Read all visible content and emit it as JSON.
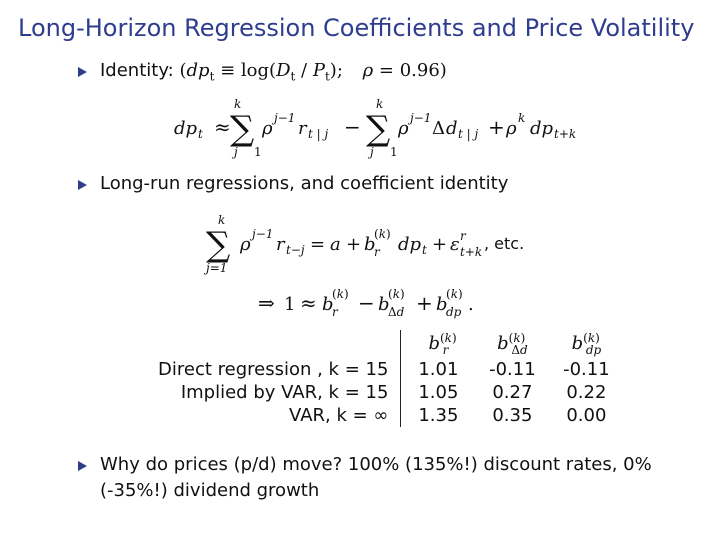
{
  "title": "Long-Horizon Regression Coefficients and Price Volatility",
  "bullets": {
    "b1": "Identity:",
    "b2": "Long-run regressions, and coefficient identity",
    "b3_line1": "Why do prices (p/d) move? 100% (135%!) discount rates, 0%",
    "b3_line2": "(-35%!) dividend growth"
  },
  "identity": {
    "lhs": "(dpt ≡ log(Dt / Pt);",
    "rho": "ρ = 0.96)"
  },
  "etc": ", etc.",
  "table": {
    "rows": [
      {
        "label": "Direct regression , k = 15",
        "br": "1.01",
        "bd": "-0.11",
        "bdp": "-0.11"
      },
      {
        "label": "Implied by VAR, k = 15",
        "br": "1.05",
        "bd": "0.27",
        "bdp": "0.22"
      },
      {
        "label": "VAR, k = ∞",
        "br": "1.35",
        "bd": "0.35",
        "bdp": "0.00"
      }
    ]
  }
}
